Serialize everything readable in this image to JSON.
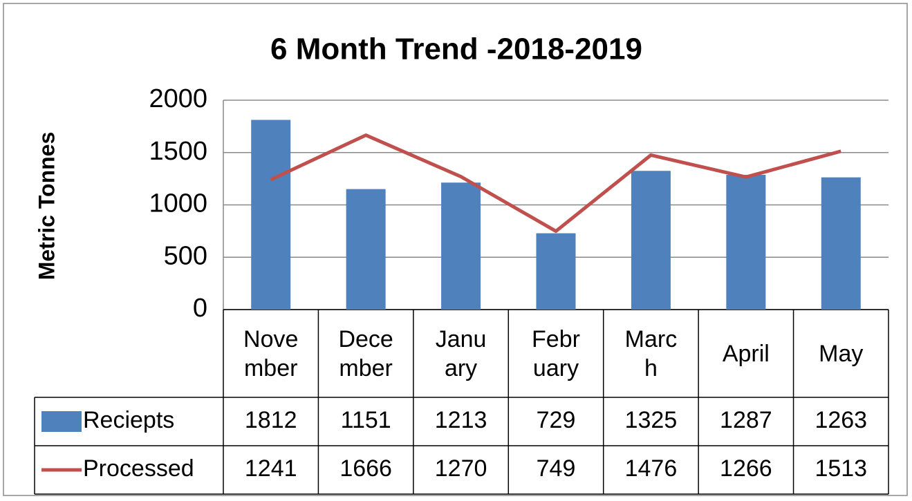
{
  "chart_data": {
    "type": "bar_line",
    "title": "6  Month Trend  -2018-2019",
    "y_label": "Metric Tonnes",
    "categories": [
      "November",
      "December",
      "January",
      "February",
      "March",
      "April",
      "May"
    ],
    "series": [
      {
        "name": "Reciepts",
        "type": "bar",
        "color": "#4f81bd",
        "values": [
          1812,
          1151,
          1213,
          729,
          1325,
          1287,
          1263
        ]
      },
      {
        "name": "Processed",
        "type": "line",
        "color": "#c0504d",
        "values": [
          1241,
          1666,
          1270,
          749,
          1476,
          1266,
          1513
        ]
      }
    ],
    "ylim": [
      0,
      2000
    ],
    "yticks": [
      0,
      500,
      1000,
      1500,
      2000
    ],
    "grid": true,
    "data_table": true
  }
}
